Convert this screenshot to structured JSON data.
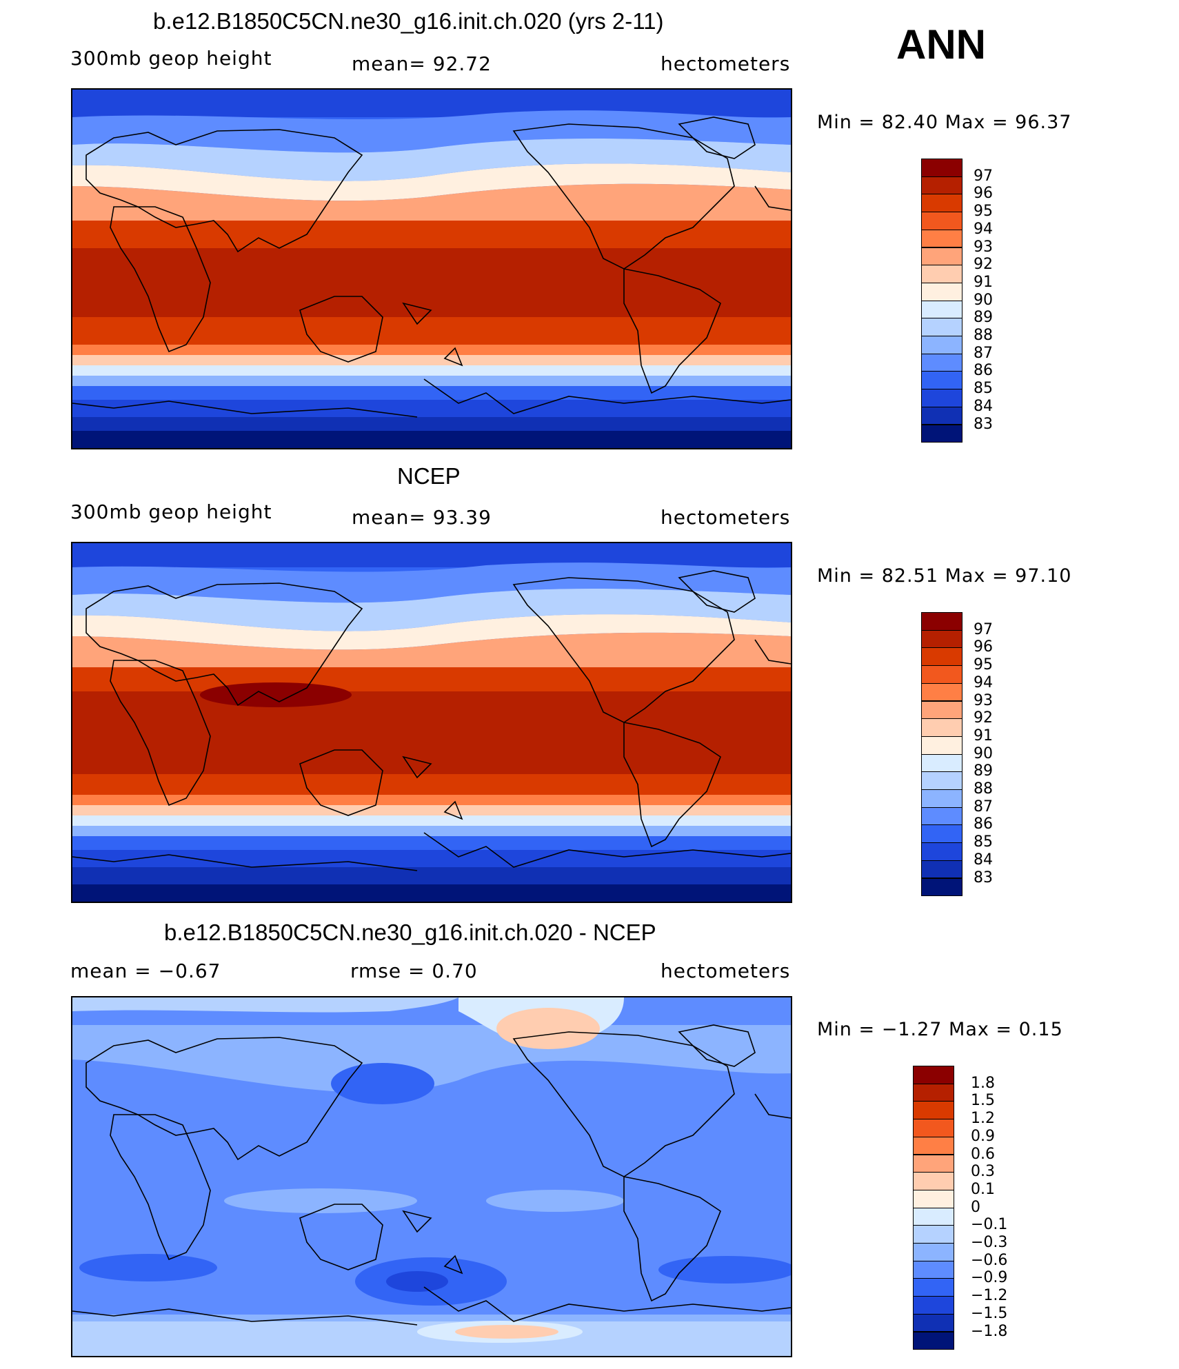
{
  "season": "ANN",
  "panels": [
    {
      "title": "b.e12.B1850C5CN.ne30_g16.init.ch.020 (yrs 2-11)",
      "left": "300mb geop height",
      "center": "mean=   92.72",
      "right": "hectometers",
      "minmax": "Min =   82.40  Max =   96.37",
      "levels": [
        "97",
        "96",
        "95",
        "94",
        "93",
        "92",
        "91",
        "90",
        "89",
        "88",
        "87",
        "86",
        "85",
        "84",
        "83"
      ],
      "colors": [
        "#8b0000",
        "#b52000",
        "#d93a00",
        "#f2581e",
        "#ff7f45",
        "#ffa47a",
        "#ffcdb0",
        "#fff0e0",
        "#d9ecff",
        "#b5d2ff",
        "#8cb4ff",
        "#5e8cff",
        "#3264f5",
        "#1e46dc",
        "#1030b4",
        "#001478"
      ]
    },
    {
      "title": "NCEP",
      "left": "300mb geop height",
      "center": "mean=   93.39",
      "right": "hectometers",
      "minmax": "Min =   82.51  Max =   97.10",
      "levels": [
        "97",
        "96",
        "95",
        "94",
        "93",
        "92",
        "91",
        "90",
        "89",
        "88",
        "87",
        "86",
        "85",
        "84",
        "83"
      ],
      "colors": [
        "#8b0000",
        "#b52000",
        "#d93a00",
        "#f2581e",
        "#ff7f45",
        "#ffa47a",
        "#ffcdb0",
        "#fff0e0",
        "#d9ecff",
        "#b5d2ff",
        "#8cb4ff",
        "#5e8cff",
        "#3264f5",
        "#1e46dc",
        "#1030b4",
        "#001478"
      ]
    },
    {
      "title": "b.e12.B1850C5CN.ne30_g16.init.ch.020 - NCEP",
      "left": "mean =   −0.67",
      "center": "rmse =     0.70",
      "right": "hectometers",
      "minmax": "Min =   −1.27  Max =     0.15",
      "levels": [
        "1.8",
        "1.5",
        "1.2",
        "0.9",
        "0.6",
        "0.3",
        "0.1",
        "0",
        "−0.1",
        "−0.3",
        "−0.6",
        "−0.9",
        "−1.2",
        "−1.5",
        "−1.8"
      ],
      "colors": [
        "#8b0000",
        "#b52000",
        "#d93a00",
        "#f2581e",
        "#ff7f45",
        "#ffa47a",
        "#ffcdb0",
        "#fff0e0",
        "#d9ecff",
        "#b5d2ff",
        "#8cb4ff",
        "#5e8cff",
        "#3264f5",
        "#1e46dc",
        "#1030b4",
        "#001478"
      ]
    }
  ]
}
